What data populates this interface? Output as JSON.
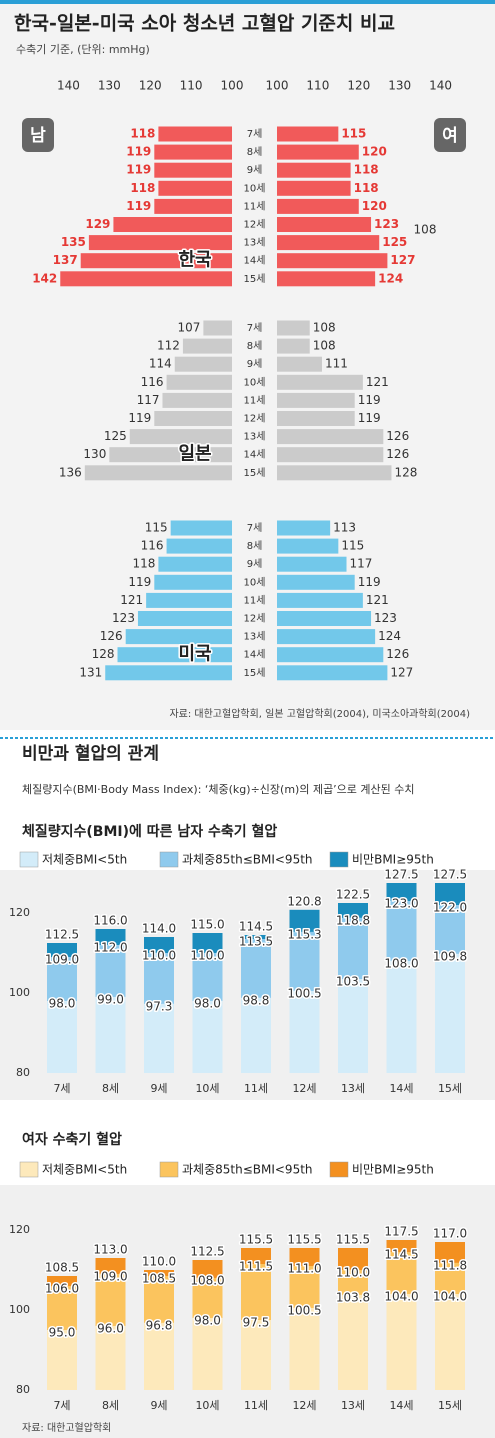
{
  "chart_data": [
    {
      "type": "butterfly",
      "title": "한국-일본-미국 소아 청소년 고혈압 기준치 비교",
      "subtitle": "수축기 기준, (단위: mmHg)",
      "male_label": "남",
      "female_label": "여",
      "categories": [
        "7세",
        "8세",
        "9세",
        "10세",
        "11세",
        "12세",
        "13세",
        "14세",
        "15세"
      ],
      "xlim": [
        100,
        145
      ],
      "xticks_male": [
        140,
        130,
        120,
        110,
        100
      ],
      "xticks_female": [
        100,
        110,
        120,
        130,
        140
      ],
      "groups": [
        {
          "name": "한국",
          "color": "#f15a5a",
          "male": [
            118,
            119,
            119,
            118,
            119,
            129,
            135,
            137,
            142
          ],
          "female": [
            115,
            120,
            118,
            118,
            120,
            123,
            125,
            127,
            124
          ]
        },
        {
          "name": "일본",
          "color": "#cbcbcb",
          "male": [
            107,
            112,
            114,
            116,
            117,
            119,
            125,
            130,
            136
          ],
          "female": [
            108,
            108,
            111,
            121,
            119,
            119,
            126,
            126,
            128
          ]
        },
        {
          "name": "미국",
          "color": "#72c8ea",
          "male": [
            115,
            116,
            118,
            119,
            121,
            123,
            126,
            128,
            131
          ],
          "female": [
            113,
            115,
            117,
            119,
            121,
            123,
            124,
            126,
            127
          ]
        }
      ],
      "annotation": "108",
      "source": "자료: 대한고혈압학회, 일본 고혈압학회(2004), 미국소아과학회(2004)"
    },
    {
      "type": "overlay_bar",
      "title": "체질량지수(BMI)에 따른 남자 수축기 혈압",
      "categories": [
        "7세",
        "8세",
        "9세",
        "10세",
        "11세",
        "12세",
        "13세",
        "14세",
        "15세"
      ],
      "ylim": [
        80,
        130
      ],
      "yticks": [
        80,
        100,
        120
      ],
      "series": [
        {
          "name": "저체중BMI<5th",
          "color": "#d3ecf9",
          "values": [
            98.0,
            99.0,
            97.3,
            98.0,
            98.8,
            100.5,
            103.5,
            108.0,
            109.8
          ],
          "value_labels": [
            "98.0",
            "99.0",
            "97.3",
            "98.0",
            "98.8",
            "100.5",
            "103.5",
            "108.0",
            "109.8"
          ]
        },
        {
          "name": "과체중85th≤BMI<95th",
          "color": "#8fcaed",
          "values": [
            109.0,
            112.0,
            110.0,
            110.0,
            113.5,
            115.3,
            118.8,
            123.0,
            122.0
          ],
          "value_labels": [
            "109.0",
            "112.0",
            "110.0",
            "110.0",
            "113.5",
            "115.3",
            "118.8",
            "123.0",
            "122.0"
          ]
        },
        {
          "name": "비만BMI≥95th",
          "color": "#1a8cbd",
          "values": [
            112.5,
            116.0,
            114.0,
            115.0,
            114.5,
            120.8,
            122.5,
            127.5,
            127.5
          ],
          "value_labels": [
            "112.5",
            "116.0",
            "114.0",
            "115.0",
            "114.5",
            "120.8",
            "122.5",
            "127.5",
            "127.5"
          ]
        }
      ]
    },
    {
      "type": "overlay_bar",
      "title": "여자 수축기 혈압",
      "categories": [
        "7세",
        "8세",
        "9세",
        "10세",
        "11세",
        "12세",
        "13세",
        "14세",
        "15세"
      ],
      "ylim": [
        80,
        130
      ],
      "yticks": [
        80,
        100,
        120
      ],
      "series": [
        {
          "name": "저체중BMI<5th",
          "color": "#fde9bb",
          "values": [
            95.0,
            96.0,
            96.8,
            98.0,
            97.5,
            100.5,
            103.8,
            104.0,
            104.0
          ],
          "value_labels": [
            "95.0",
            "96.0",
            "96.8",
            "98.0",
            "97.5",
            "100.5",
            "103.8",
            "104.0",
            "104.0"
          ]
        },
        {
          "name": "과체중85th≤BMI<95th",
          "color": "#fbc45e",
          "values": [
            106.0,
            109.0,
            108.5,
            108.0,
            111.5,
            111.0,
            110.0,
            114.5,
            111.8
          ],
          "value_labels": [
            "106.0",
            "109.0",
            "108.5",
            "108.0",
            "111.5",
            "111.0",
            "110.0",
            "114.5",
            "111.8"
          ]
        },
        {
          "name": "비만BMI≥95th",
          "color": "#f39020",
          "values": [
            108.5,
            113.0,
            110.0,
            112.5,
            115.5,
            115.5,
            115.5,
            117.5,
            117.0
          ],
          "value_labels": [
            "108.5",
            "113.0",
            "110.0",
            "112.5",
            "115.5",
            "115.5",
            "115.5",
            "117.5",
            "117.0"
          ]
        }
      ],
      "source": "자료: 대한고혈압학회"
    }
  ],
  "section": {
    "title": "비만과 혈압의 관계",
    "description": "체질량지수(BMI·Body Mass Index): ‘체중(kg)÷신장(m)의 제곱’으로 계산된 수치"
  }
}
